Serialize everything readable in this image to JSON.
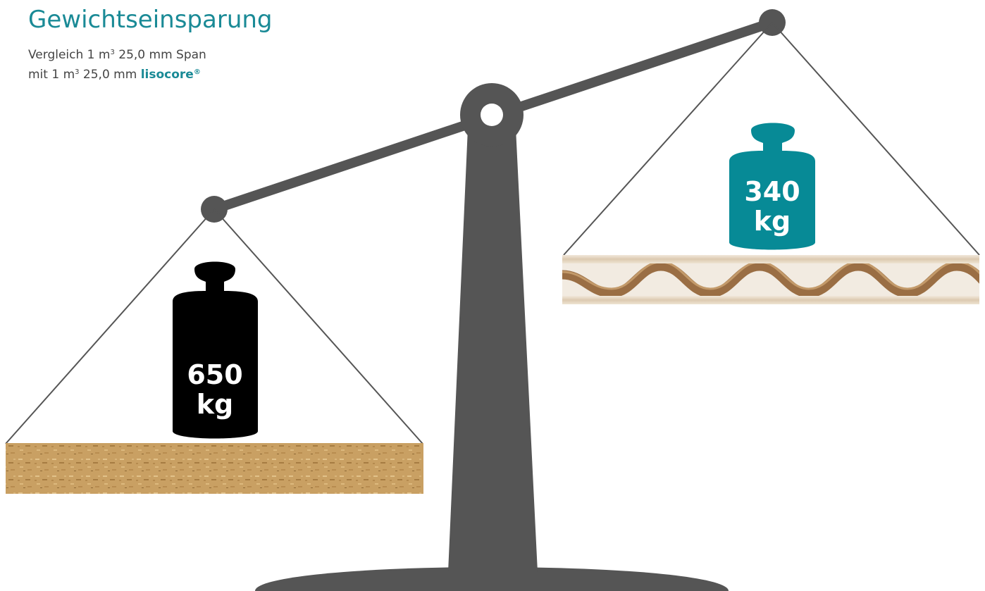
{
  "header": {
    "title": "Gewichtseinsparung",
    "line1_prefix": "Vergleich 1 m",
    "line1_exp": "3",
    "line1_suffix": " 25,0 mm Span",
    "line2_prefix": "mit 1 m",
    "line2_exp": "3",
    "line2_suffix": " 25,0 mm ",
    "brand_name": "lisocore",
    "brand_mark": "®"
  },
  "left_weight": {
    "value_line": "650",
    "unit_line": "kg",
    "color": "#000000"
  },
  "right_weight": {
    "value_line": "340",
    "unit_line": "kg",
    "color": "#078a96"
  },
  "colors": {
    "scale": "#555555",
    "accent": "#1a8a96",
    "chipboard": "#c8a062",
    "honeycomb_core": "#9a6e44",
    "panel_sheet": "#e8ddcd"
  }
}
